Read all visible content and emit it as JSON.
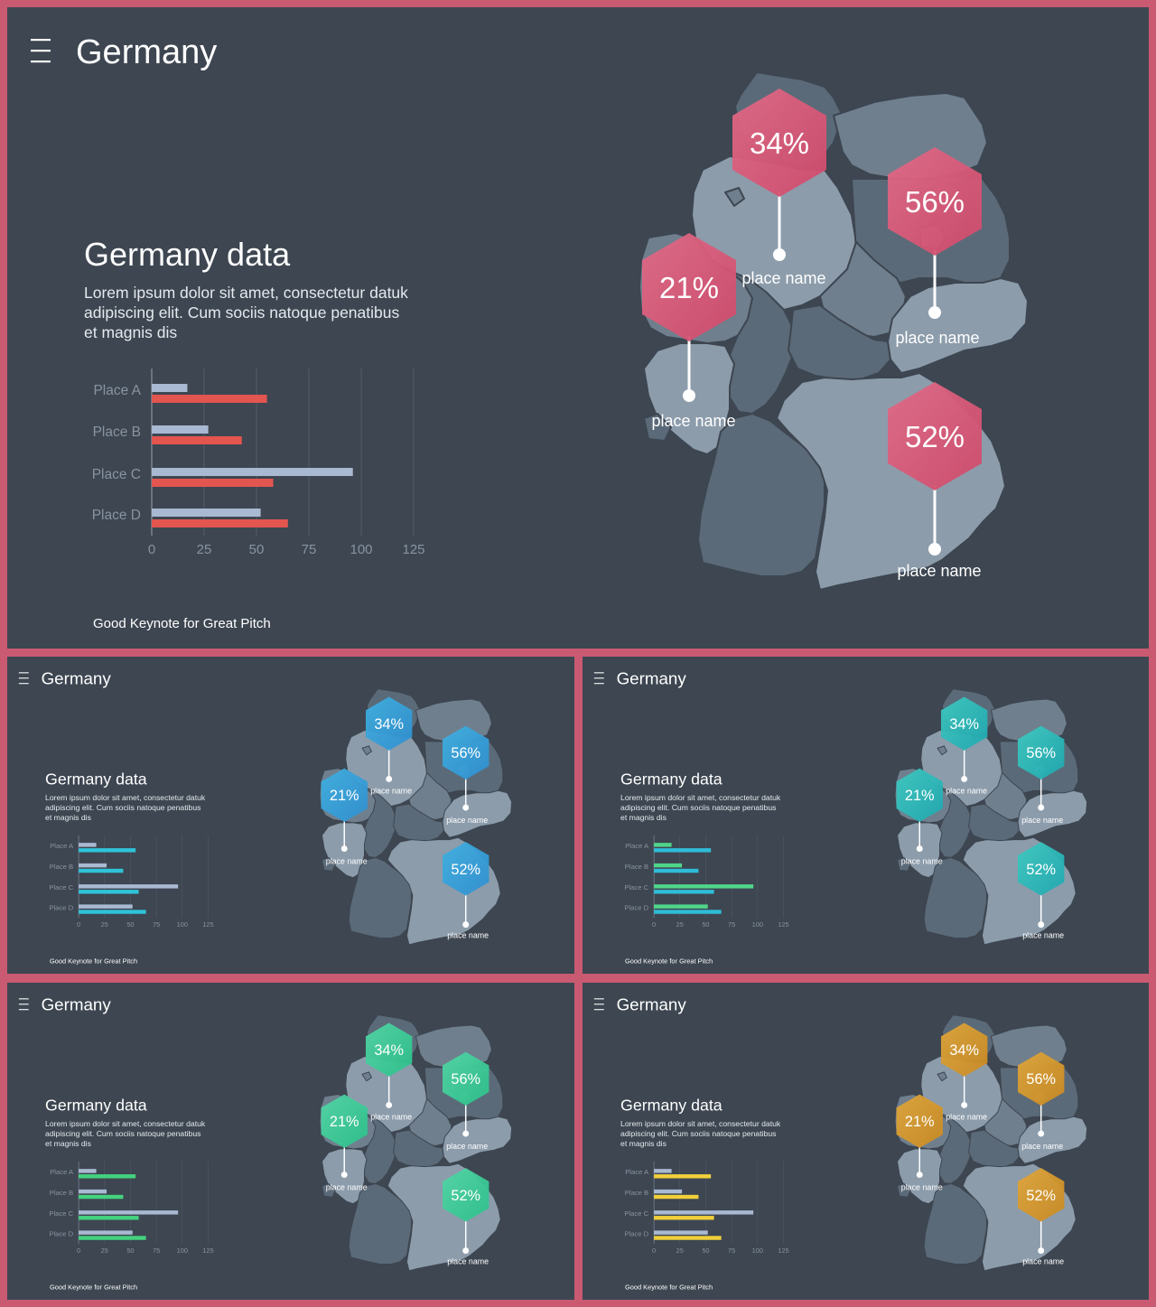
{
  "slides": [
    {
      "id": "slide-main",
      "title": "Germany",
      "heading": "Germany data",
      "body_lines": [
        "Lorem ipsum dolor sit amet, consectetur datuk",
        "adipiscing elit. Cum sociis natoque penatibus",
        "et magnis dis"
      ],
      "footer": "Good Keynote for Great Pitch",
      "colors": {
        "accent": "#cf4a6b",
        "accent_light": "#e06a86",
        "bar_secondary": "#e3554f"
      }
    },
    {
      "id": "slide-s1",
      "title": "Germany",
      "heading": "Germany data",
      "body_lines": [
        "Lorem ipsum dolor sit amet, consectetur datuk",
        "adipiscing elit. Cum sociis natoque penatibus",
        "et magnis dis"
      ],
      "footer": "Good Keynote for Great Pitch",
      "colors": {
        "accent": "#2f8fd0",
        "accent_light": "#3fb0e0",
        "bar_secondary": "#2fc3d8"
      }
    },
    {
      "id": "slide-s2",
      "title": "Germany",
      "heading": "Germany data",
      "body_lines": [
        "Lorem ipsum dolor sit amet, consectetur datuk",
        "adipiscing elit. Cum sociis natoque penatibus",
        "et magnis dis"
      ],
      "footer": "Good Keynote for Great Pitch",
      "colors": {
        "accent": "#1fa8b0",
        "accent_light": "#3ec9c0",
        "bar_secondary": "#2fbcd8",
        "bar_primary": "#4fd68a"
      }
    },
    {
      "id": "slide-s3",
      "title": "Germany",
      "heading": "Germany data",
      "body_lines": [
        "Lorem ipsum dolor sit amet, consectetur datuk",
        "adipiscing elit. Cum sociis natoque penatibus",
        "et magnis dis"
      ],
      "footer": "Good Keynote for Great Pitch",
      "colors": {
        "accent": "#2cc08a",
        "accent_light": "#52d6a6",
        "bar_secondary": "#44d27e"
      }
    },
    {
      "id": "slide-s4",
      "title": "Germany",
      "heading": "Germany data",
      "body_lines": [
        "Lorem ipsum dolor sit amet, consectetur datuk",
        "adipiscing elit. Cum sociis natoque penatibus",
        "et magnis dis"
      ],
      "footer": "Good Keynote for Great Pitch",
      "colors": {
        "accent": "#c98a22",
        "accent_light": "#e0a63a",
        "bar_secondary": "#f0cf3a"
      }
    }
  ],
  "markers": [
    {
      "value": "34%",
      "label": "place name"
    },
    {
      "value": "56%",
      "label": "place name"
    },
    {
      "value": "21%",
      "label": "place name"
    },
    {
      "value": "52%",
      "label": "place name"
    }
  ],
  "chart_data": {
    "type": "bar",
    "categories": [
      "Place A",
      "Place B",
      "Place C",
      "Place D"
    ],
    "series": [
      {
        "values": [
          17,
          27,
          96,
          52
        ]
      },
      {
        "values": [
          55,
          43,
          58,
          65
        ]
      }
    ],
    "xlim": [
      0,
      125
    ],
    "xticks": [
      "0",
      "25",
      "50",
      "75",
      "100",
      "125"
    ],
    "orientation": "horizontal",
    "grid": true
  },
  "map_colors": {
    "region_light": "#8c9cab",
    "region_mid": "#6f7f8e",
    "region_dark": "#5b6a78",
    "border": "#3d4651"
  }
}
